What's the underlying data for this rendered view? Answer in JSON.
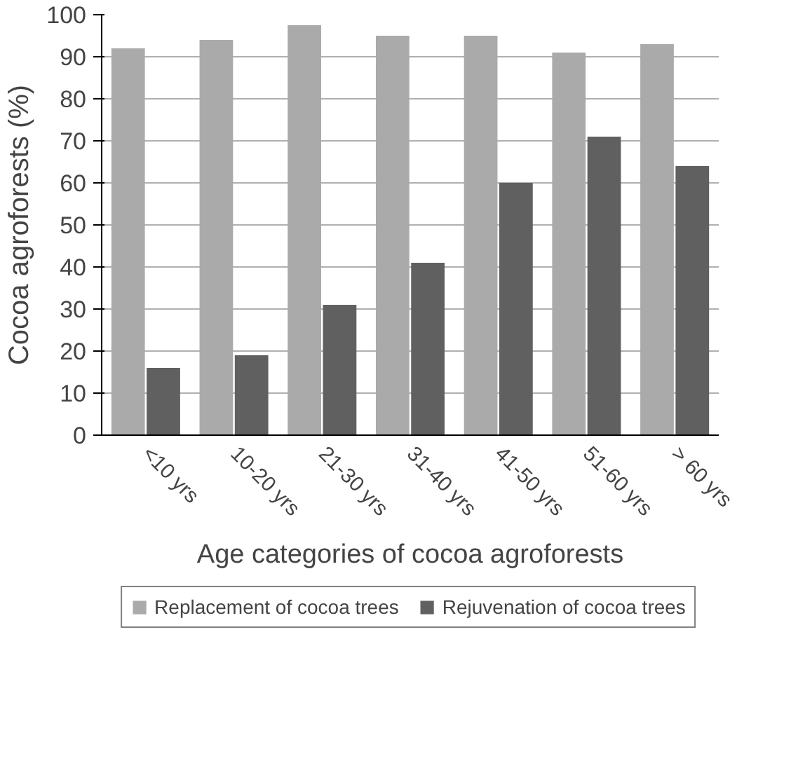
{
  "chart_data": {
    "type": "bar",
    "xlabel": "Age categories of cocoa agroforests",
    "ylabel": "Cocoa agroforests (%)",
    "categories": [
      "<10 yrs",
      "10-20 yrs",
      "21-30 yrs",
      "31-40 yrs",
      "41-50 yrs",
      "51-60 yrs",
      "> 60 yrs"
    ],
    "series": [
      {
        "name": "Replacement of cocoa trees",
        "color": "#aaaaaa",
        "values": [
          92,
          94,
          97.5,
          95,
          95,
          91,
          93
        ]
      },
      {
        "name": "Rejuvenation of cocoa trees",
        "color": "#606060",
        "values": [
          16,
          19,
          31,
          41,
          60,
          71,
          64
        ]
      }
    ],
    "ylim": [
      0,
      100
    ],
    "yticks": [
      0,
      10,
      20,
      30,
      40,
      50,
      60,
      70,
      80,
      90,
      100
    ],
    "grid": "y",
    "legend": "bottom"
  }
}
